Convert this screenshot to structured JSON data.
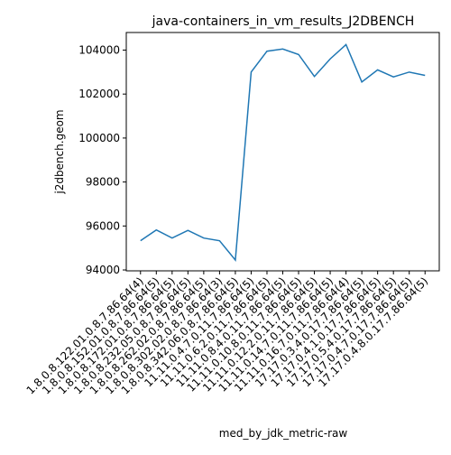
{
  "chart_data": {
    "type": "line",
    "title": "java-containers_in_vm_results_J2DBENCH",
    "x_label": "med_by_jdk_metric-raw",
    "y_label": "j2dbench.geom",
    "categories": [
      "1.8.0.8.122.01.0.8.7.86.64(4)",
      "1.8.0.8.152.01.0.8.7.86.64(5)",
      "1.8.0.8.172.01.0.8.7.86.64(5)",
      "1.8.0.8.232.05.0.8.7.86.64(5)",
      "1.8.0.8.262.02.0.8.7.86.64(5)",
      "1.8.0.8.302.02.0.8.7.86.64(3)",
      "1.8.0.8.342.06.0.8.7.86.64(5)",
      "11.11.0.4.7.0.11.7.86.64(5)",
      "11.11.0.6.2.0.11.7.86.64(5)",
      "11.11.0.8.4.0.11.7.86.64(5)",
      "11.11.0.10.8.0.11.7.86.64(5)",
      "11.11.0.12.2.0.11.7.86.64(5)",
      "11.11.0.14.7.0.11.7.86.64(5)",
      "11.11.0.16.7.0.11.7.86.64(4)",
      "17.17.0.3.4.0.17.7.86.64(5)",
      "17.17.0.4.1.0.17.7.86.64(5)",
      "17.17.0.5.4.0.17.7.86.64(5)",
      "17.17.0.4.7.0.17.7.86.64(5)",
      "17.17.0.4.8.0.17.7.86.64(5)"
    ],
    "series": [
      {
        "name": "j2dbench.geom",
        "color": "#1f77b4",
        "values": [
          95330,
          95820,
          95450,
          95800,
          95450,
          95330,
          94450,
          103000,
          103950,
          104050,
          103800,
          102800,
          103600,
          104250,
          102550,
          103100,
          102780,
          103000,
          102850
        ]
      }
    ],
    "ylim": [
      93960,
      104800
    ],
    "yticks": [
      94000,
      96000,
      98000,
      100000,
      102000,
      104000
    ],
    "grid": false
  }
}
